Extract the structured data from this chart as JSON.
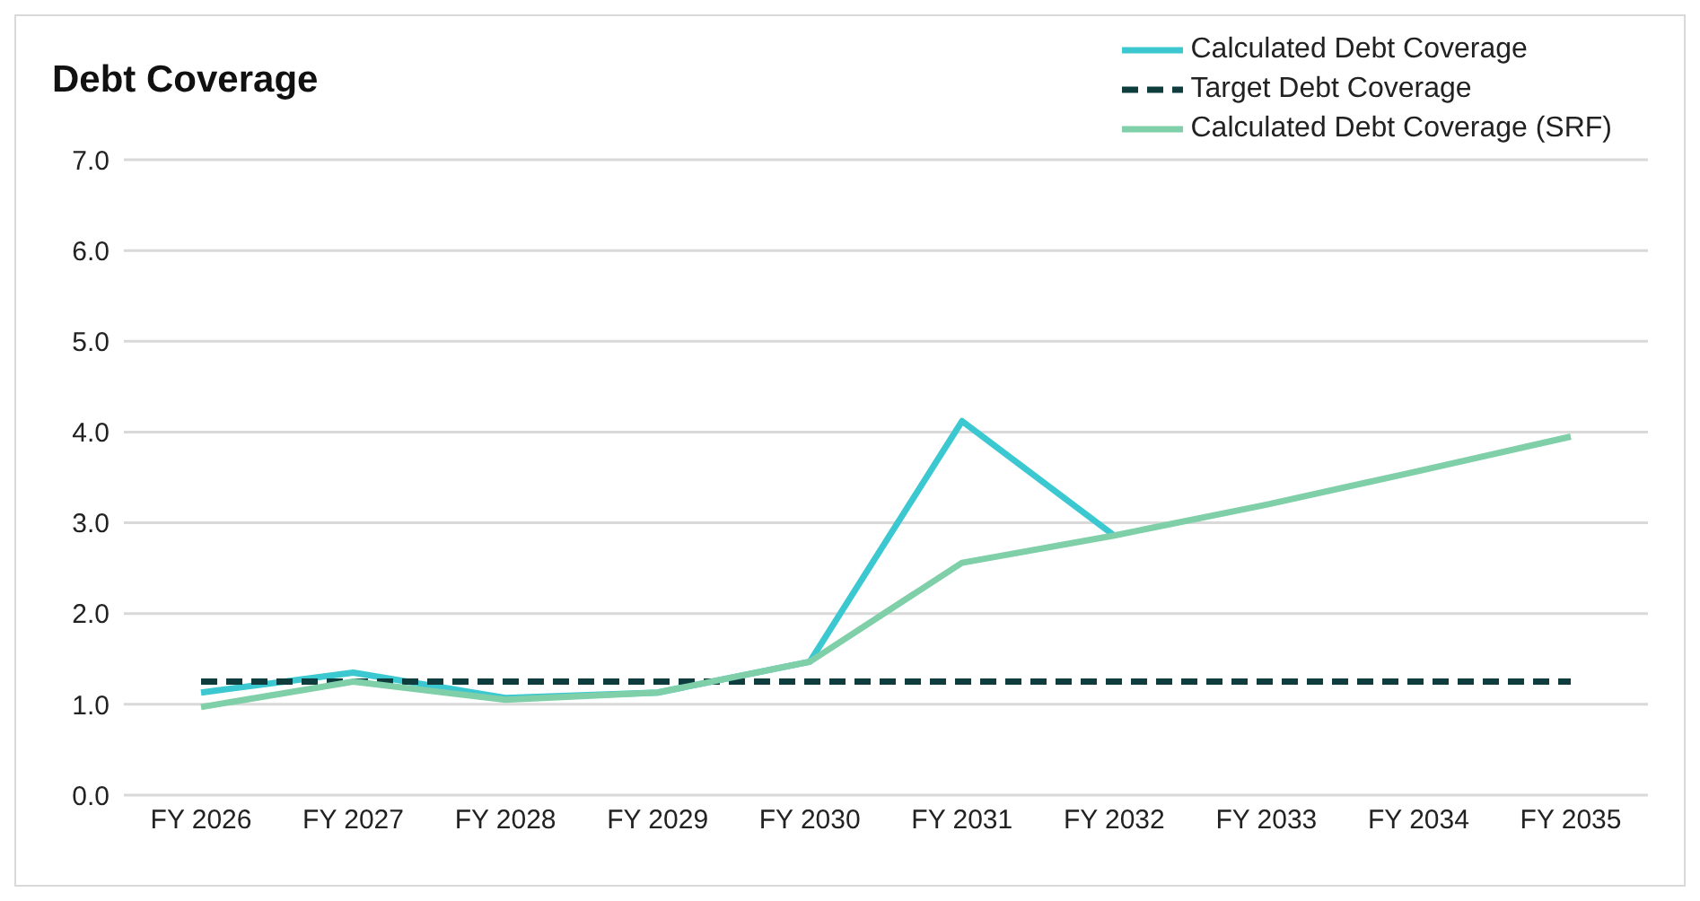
{
  "chart_data": {
    "type": "line",
    "title": "Debt Coverage",
    "categories": [
      "FY 2026",
      "FY 2027",
      "FY 2028",
      "FY 2029",
      "FY 2030",
      "FY 2031",
      "FY 2032",
      "FY 2033",
      "FY 2034",
      "FY 2035"
    ],
    "series": [
      {
        "name": "Calculated Debt Coverage",
        "color": "#3cc8d0",
        "values": [
          1.13,
          1.35,
          1.07,
          1.13,
          1.47,
          4.12,
          2.86,
          null,
          null,
          null
        ]
      },
      {
        "name": "Target Debt Coverage",
        "color": "#0f3d3e",
        "line_style": "dashed",
        "values": [
          1.25,
          1.25,
          1.25,
          1.25,
          1.25,
          1.25,
          1.25,
          1.25,
          1.25,
          1.25
        ]
      },
      {
        "name": "Calculated Debt Coverage (SRF)",
        "color": "#7fcfa8",
        "values": [
          0.97,
          1.25,
          1.05,
          1.13,
          1.47,
          2.56,
          2.86,
          3.2,
          3.57,
          3.95
        ]
      }
    ],
    "ylim": [
      0,
      7
    ],
    "yticks": [
      {
        "value": 0,
        "label": "0.0"
      },
      {
        "value": 1,
        "label": "1.0"
      },
      {
        "value": 2,
        "label": "2.0"
      },
      {
        "value": 3,
        "label": "3.0"
      },
      {
        "value": 4,
        "label": "4.0"
      },
      {
        "value": 5,
        "label": "5.0"
      },
      {
        "value": 6,
        "label": "6.0"
      },
      {
        "value": 7,
        "label": "7.0"
      }
    ],
    "grid": "y",
    "legend": "top right",
    "marker": "none",
    "line_style": "solid"
  }
}
